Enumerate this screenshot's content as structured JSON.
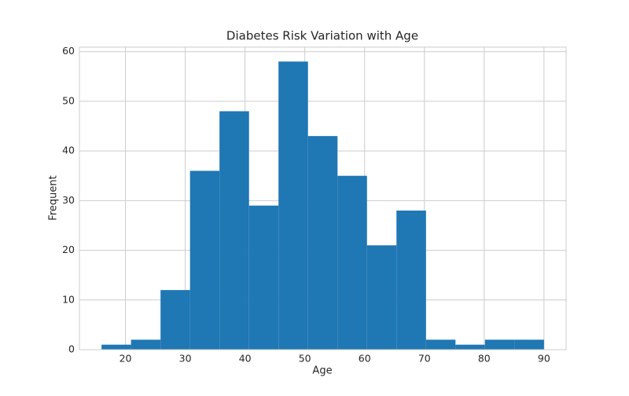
{
  "chart_data": {
    "type": "histogram",
    "title": "Diabetes Risk Variation with Age",
    "xlabel": "Age",
    "ylabel": "Frequent",
    "bins": [
      16,
      20.93,
      25.87,
      30.8,
      35.73,
      40.67,
      45.6,
      50.53,
      55.47,
      60.4,
      65.33,
      70.27,
      75.2,
      80.13,
      85.07,
      90
    ],
    "values": [
      1,
      2,
      12,
      36,
      48,
      29,
      58,
      43,
      35,
      21,
      28,
      2,
      1,
      2,
      2
    ],
    "color": "#1f77b4",
    "xlim": [
      12.3,
      93.7
    ],
    "xticks": [
      20,
      30,
      40,
      50,
      60,
      70,
      80,
      90
    ],
    "ylim": [
      0,
      60.9
    ],
    "yticks": [
      0,
      10,
      20,
      30,
      40,
      50,
      60
    ],
    "grid": true
  }
}
